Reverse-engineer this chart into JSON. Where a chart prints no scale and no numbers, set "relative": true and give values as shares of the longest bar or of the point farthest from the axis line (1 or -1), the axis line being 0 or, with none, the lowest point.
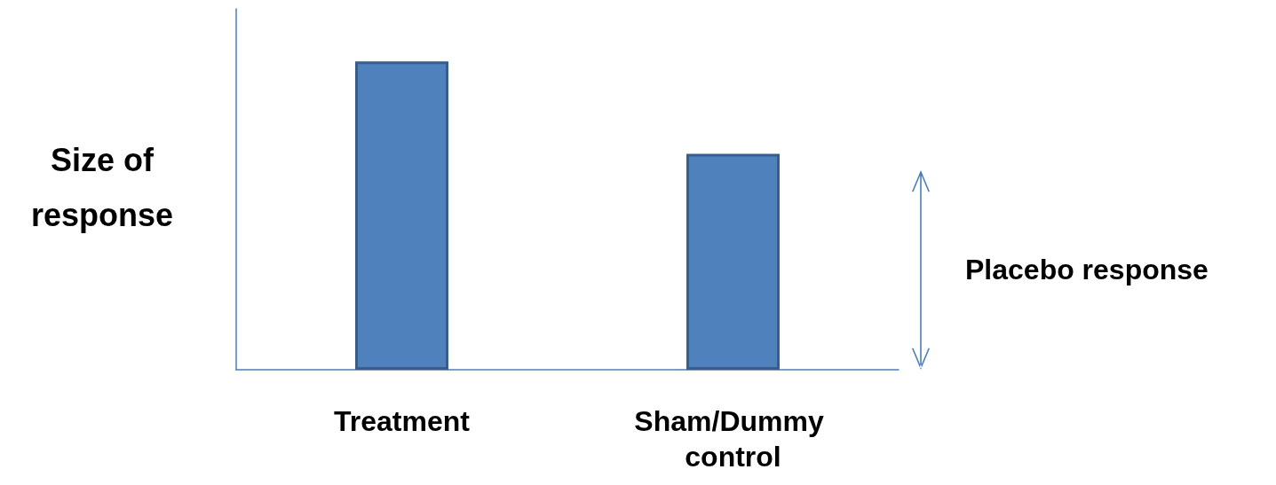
{
  "chart_data": {
    "type": "bar",
    "relative": true,
    "ylabel": "Size of response",
    "categories": [
      "Treatment",
      "Sham/Dummy control"
    ],
    "values": [
      1,
      0.7
    ],
    "color": "#4f81bd",
    "annotations": [
      "Placebo response"
    ],
    "grid": false
  }
}
